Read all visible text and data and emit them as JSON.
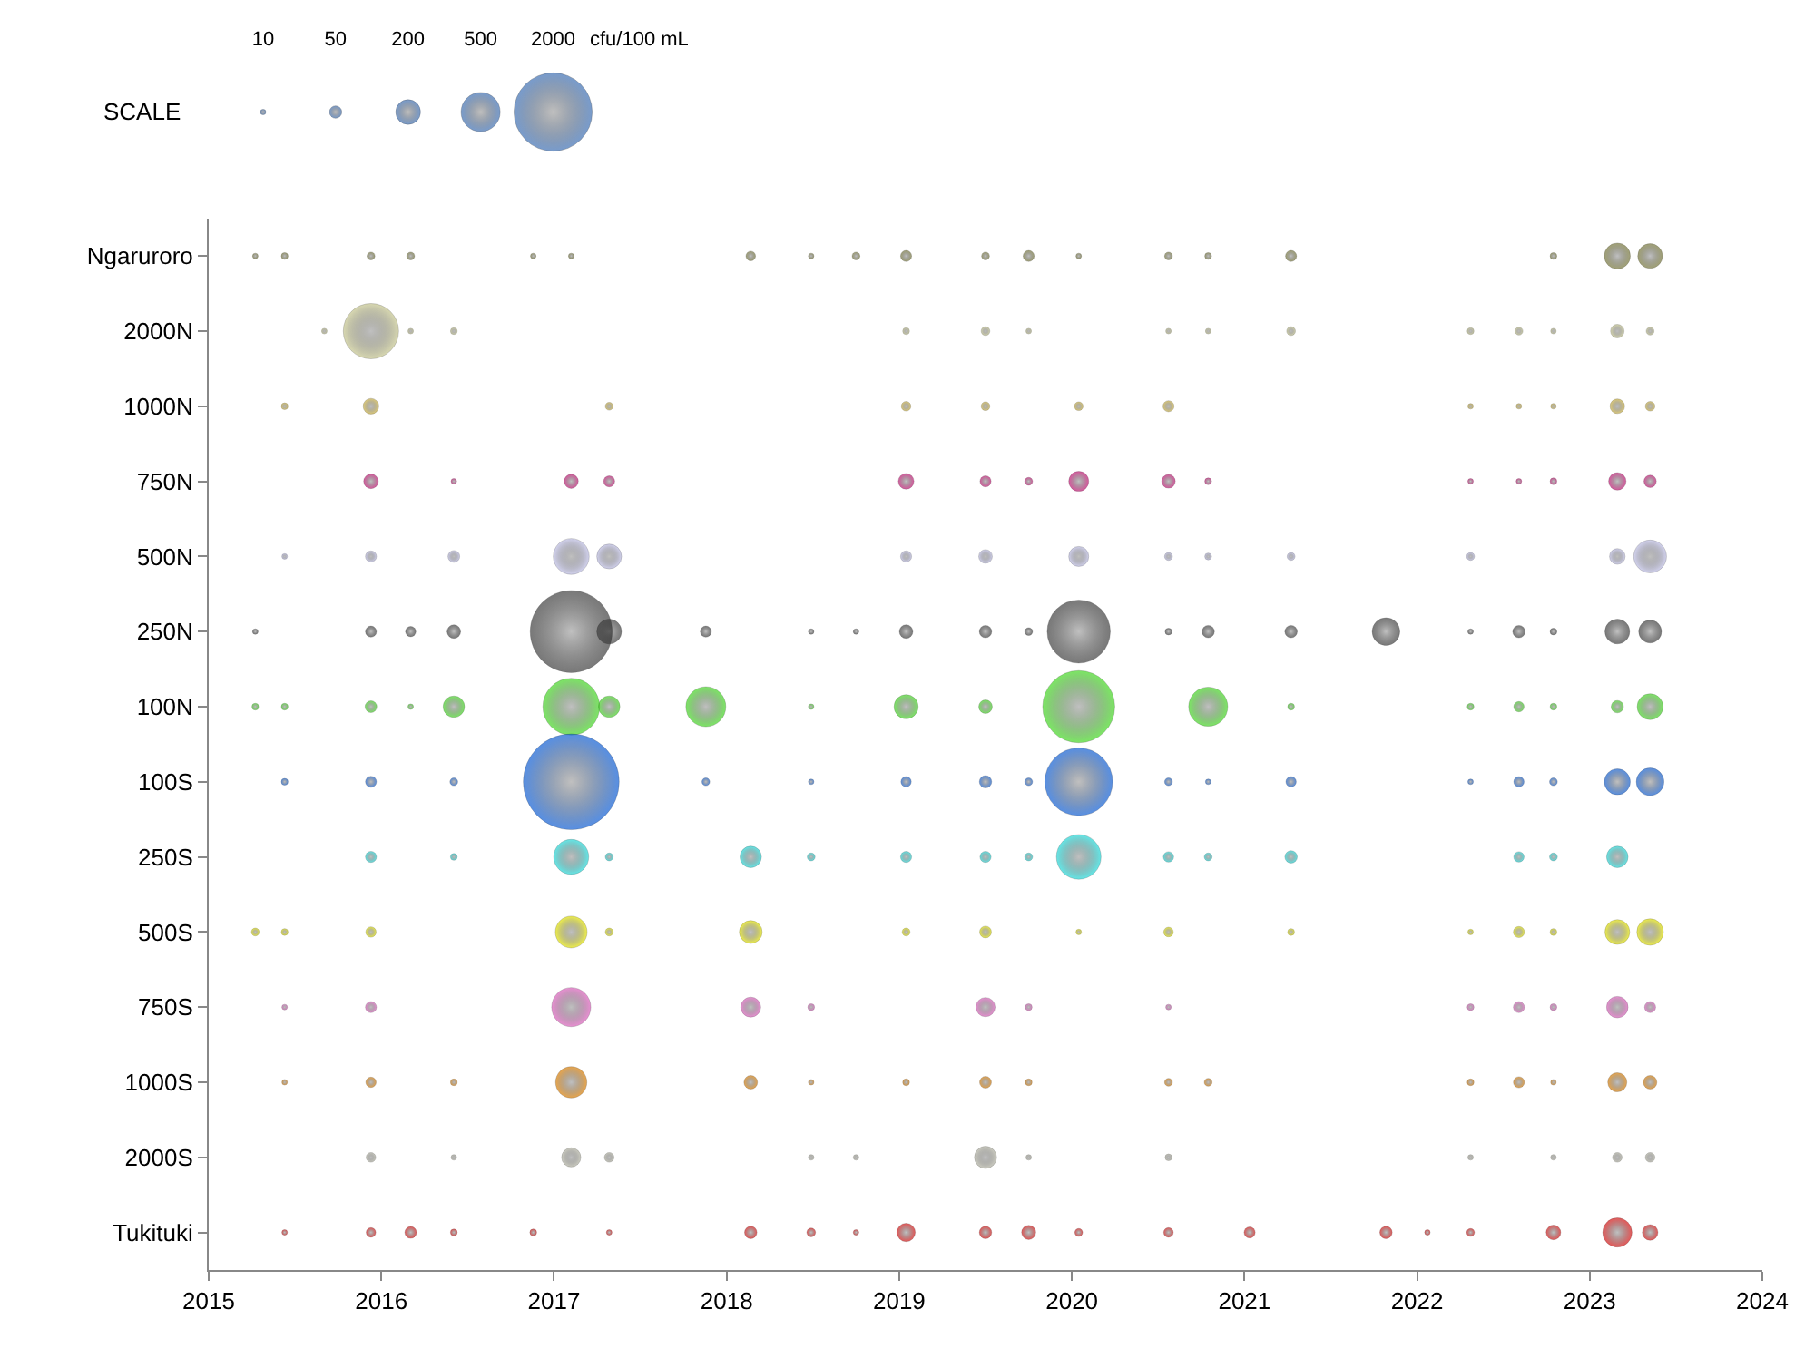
{
  "chart_data": {
    "type": "bubble",
    "orientation": "horizontal",
    "xlim": [
      2015,
      2024
    ],
    "xticks": [
      2015,
      2016,
      2017,
      2018,
      2019,
      2020,
      2021,
      2022,
      2023,
      2024
    ],
    "categories": [
      "Ngaruroro",
      "2000N",
      "1000N",
      "750N",
      "500N",
      "250N",
      "100N",
      "100S",
      "250S",
      "500S",
      "750S",
      "1000S",
      "2000S",
      "Tukituki"
    ],
    "colors": [
      "#7a7a3a",
      "#c8c890",
      "#d4b840",
      "#cc1177",
      "#c0c0e8",
      "#404040",
      "#44dd22",
      "#1060d8",
      "#22dddd",
      "#e8e800",
      "#e060c0",
      "#e08000",
      "#b8b8a8",
      "#e01010"
    ],
    "grid": false,
    "legend": false,
    "marker": "circle",
    "size_legend": [
      10,
      50,
      200,
      500,
      2000
    ],
    "annotations": [
      "SCALE",
      "cfu/100 mL"
    ],
    "series": [
      {
        "values": [
          2015.27,
          null,
          null,
          null,
          null,
          2015.27,
          2015.27,
          null,
          null,
          2015.27,
          null,
          null,
          null,
          null
        ],
        "sizes": [
          10,
          null,
          null,
          null,
          null,
          10,
          15,
          null,
          null,
          20,
          null,
          null,
          null,
          null
        ]
      },
      {
        "values": [
          2015.44,
          null,
          2015.44,
          null,
          2015.44,
          null,
          2015.44,
          2015.44,
          null,
          2015.44,
          2015.44,
          2015.44,
          null,
          2015.44
        ],
        "sizes": [
          15,
          null,
          15,
          null,
          10,
          null,
          15,
          15,
          null,
          15,
          10,
          10,
          null,
          10
        ]
      },
      {
        "values": [
          null,
          2015.67,
          null,
          null,
          null,
          null,
          null,
          null,
          null,
          null,
          null,
          null,
          null,
          null
        ],
        "sizes": [
          null,
          10,
          null,
          null,
          null,
          null,
          null,
          null,
          null,
          null,
          null,
          null,
          null,
          null
        ]
      },
      {
        "values": [
          2015.94,
          2015.94,
          2015.94,
          2015.94,
          2015.94,
          2015.94,
          2015.94,
          2015.94,
          2015.94,
          2015.94,
          2015.94,
          2015.94,
          2015.94,
          2015.94
        ],
        "sizes": [
          20,
          1000,
          80,
          70,
          40,
          40,
          45,
          40,
          40,
          35,
          40,
          35,
          30,
          30
        ]
      },
      {
        "values": [
          2016.17,
          2016.17,
          null,
          null,
          null,
          2016.17,
          2016.17,
          null,
          null,
          null,
          null,
          null,
          null,
          2016.17
        ],
        "sizes": [
          20,
          10,
          null,
          null,
          null,
          35,
          10,
          null,
          null,
          null,
          null,
          null,
          null,
          45
        ]
      },
      {
        "values": [
          null,
          2016.42,
          null,
          2016.42,
          2016.42,
          2016.42,
          2016.42,
          2016.42,
          2016.42,
          null,
          null,
          2016.42,
          2016.42,
          2016.42
        ],
        "sizes": [
          null,
          15,
          null,
          10,
          45,
          60,
          150,
          20,
          15,
          null,
          null,
          15,
          10,
          15
        ]
      },
      {
        "values": [
          2016.88,
          null,
          null,
          null,
          null,
          null,
          null,
          null,
          null,
          null,
          null,
          null,
          null,
          2016.88
        ],
        "sizes": [
          10,
          null,
          null,
          null,
          null,
          null,
          null,
          null,
          null,
          null,
          null,
          null,
          null,
          15
        ]
      },
      {
        "values": [
          2017.1,
          null,
          null,
          2017.1,
          2017.1,
          2017.1,
          2017.1,
          2017.1,
          2017.1,
          2017.1,
          2017.1,
          2017.1,
          2017.1,
          null
        ],
        "sizes": [
          10,
          null,
          null,
          65,
          420,
          2200,
          1050,
          3000,
          400,
          330,
          500,
          320,
          120,
          null
        ]
      },
      {
        "values": [
          null,
          null,
          2017.32,
          2017.32,
          2017.32,
          2017.32,
          2017.32,
          null,
          2017.32,
          2017.32,
          null,
          null,
          2017.32,
          2017.32
        ],
        "sizes": [
          null,
          null,
          20,
          40,
          200,
          200,
          150,
          null,
          20,
          20,
          null,
          null,
          30,
          10
        ]
      },
      {
        "values": [
          null,
          null,
          null,
          null,
          null,
          2017.88,
          2017.88,
          2017.88,
          null,
          null,
          null,
          null,
          null,
          null
        ],
        "sizes": [
          null,
          null,
          null,
          null,
          null,
          40,
          520,
          20,
          null,
          null,
          null,
          null,
          null,
          null
        ]
      },
      {
        "values": [
          2018.14,
          null,
          null,
          null,
          null,
          null,
          null,
          null,
          2018.14,
          2018.14,
          2018.14,
          2018.14,
          null,
          2018.14
        ],
        "sizes": [
          30,
          null,
          null,
          null,
          null,
          null,
          null,
          null,
          150,
          170,
          130,
          60,
          null,
          50
        ]
      },
      {
        "values": [
          2018.49,
          null,
          null,
          null,
          null,
          2018.49,
          2018.49,
          2018.49,
          2018.49,
          null,
          2018.49,
          2018.49,
          2018.49,
          2018.49
        ],
        "sizes": [
          10,
          null,
          null,
          null,
          null,
          10,
          10,
          10,
          20,
          null,
          15,
          10,
          10,
          25
        ]
      },
      {
        "values": [
          2018.75,
          null,
          null,
          null,
          null,
          2018.75,
          null,
          null,
          null,
          null,
          null,
          null,
          2018.75,
          2018.75
        ],
        "sizes": [
          20,
          null,
          null,
          null,
          null,
          10,
          null,
          null,
          null,
          null,
          null,
          null,
          10,
          10
        ]
      },
      {
        "values": [
          2019.04,
          2019.04,
          2019.04,
          2019.04,
          2019.04,
          2019.04,
          2019.04,
          2019.04,
          2019.04,
          2019.04,
          null,
          2019.04,
          null,
          2019.04
        ],
        "sizes": [
          40,
          15,
          30,
          80,
          40,
          60,
          190,
          35,
          40,
          20,
          null,
          15,
          null,
          110
        ]
      },
      {
        "values": [
          2019.5,
          2019.5,
          2019.5,
          2019.5,
          2019.5,
          2019.5,
          2019.5,
          2019.5,
          2019.5,
          2019.5,
          2019.5,
          2019.5,
          2019.5,
          2019.5
        ],
        "sizes": [
          20,
          25,
          25,
          40,
          60,
          50,
          60,
          50,
          40,
          45,
          120,
          45,
          160,
          50
        ]
      },
      {
        "values": [
          2019.75,
          2019.75,
          null,
          2019.75,
          null,
          2019.75,
          null,
          2019.75,
          2019.75,
          null,
          2019.75,
          2019.75,
          2019.75,
          2019.75
        ],
        "sizes": [
          40,
          10,
          null,
          20,
          null,
          20,
          null,
          20,
          20,
          null,
          15,
          15,
          10,
          65
        ]
      },
      {
        "values": [
          2020.04,
          null,
          2020.04,
          2020.04,
          2020.04,
          2020.04,
          2020.04,
          2020.04,
          2020.04,
          2020.04,
          null,
          null,
          null,
          2020.04
        ],
        "sizes": [
          10,
          null,
          25,
          130,
          130,
          1300,
          1700,
          1500,
          650,
          10,
          null,
          null,
          null,
          20
        ]
      },
      {
        "values": [
          2020.56,
          2020.56,
          2020.56,
          2020.56,
          2020.56,
          2020.56,
          null,
          2020.56,
          2020.56,
          2020.56,
          2020.56,
          2020.56,
          2020.56,
          2020.56
        ],
        "sizes": [
          20,
          10,
          40,
          60,
          20,
          15,
          null,
          20,
          35,
          30,
          10,
          20,
          15,
          30
        ]
      },
      {
        "values": [
          2020.79,
          2020.79,
          null,
          2020.79,
          2020.79,
          2020.79,
          2020.79,
          2020.79,
          2020.79,
          null,
          null,
          2020.79,
          null,
          null
        ],
        "sizes": [
          15,
          10,
          null,
          15,
          15,
          50,
          500,
          10,
          20,
          null,
          null,
          20,
          null,
          null
        ]
      },
      {
        "values": [
          null,
          null,
          null,
          null,
          null,
          null,
          null,
          null,
          null,
          null,
          null,
          null,
          null,
          2021.03
        ],
        "sizes": [
          null,
          null,
          null,
          null,
          null,
          null,
          null,
          null,
          null,
          null,
          null,
          null,
          null,
          40
        ]
      },
      {
        "values": [
          2021.27,
          2021.27,
          null,
          null,
          2021.27,
          2021.27,
          2021.27,
          2021.27,
          2021.27,
          2021.27,
          null,
          null,
          null,
          null
        ],
        "sizes": [
          40,
          25,
          null,
          null,
          20,
          50,
          15,
          35,
          50,
          15,
          null,
          null,
          null,
          null
        ]
      },
      {
        "values": [
          null,
          null,
          null,
          null,
          null,
          2021.82,
          null,
          null,
          null,
          null,
          null,
          null,
          null,
          2021.82
        ],
        "sizes": [
          null,
          null,
          null,
          null,
          null,
          250,
          null,
          null,
          null,
          null,
          null,
          null,
          null,
          50
        ]
      },
      {
        "values": [
          null,
          null,
          null,
          null,
          null,
          null,
          null,
          null,
          null,
          null,
          null,
          null,
          null,
          2022.06
        ],
        "sizes": [
          null,
          null,
          null,
          null,
          null,
          null,
          null,
          null,
          null,
          null,
          null,
          null,
          null,
          10
        ]
      },
      {
        "values": [
          null,
          2022.31,
          2022.31,
          2022.31,
          2022.31,
          2022.31,
          2022.31,
          2022.31,
          null,
          2022.31,
          2022.31,
          2022.31,
          2022.31,
          2022.31
        ],
        "sizes": [
          null,
          15,
          10,
          10,
          20,
          10,
          15,
          10,
          null,
          10,
          15,
          15,
          10,
          20
        ]
      },
      {
        "values": [
          null,
          2022.59,
          2022.59,
          2022.59,
          null,
          2022.59,
          2022.59,
          2022.59,
          2022.59,
          2022.59,
          2022.59,
          2022.59,
          null,
          null
        ],
        "sizes": [
          null,
          20,
          10,
          10,
          null,
          50,
          35,
          35,
          35,
          40,
          40,
          40,
          null,
          null
        ]
      },
      {
        "values": [
          2022.79,
          2022.79,
          2022.79,
          2022.79,
          null,
          2022.79,
          2022.79,
          2022.79,
          2022.79,
          2022.79,
          2022.79,
          2022.79,
          2022.79,
          2022.79
        ],
        "sizes": [
          15,
          10,
          10,
          15,
          null,
          15,
          15,
          20,
          20,
          15,
          15,
          10,
          10,
          70
        ]
      },
      {
        "values": [
          2023.16,
          2023.16,
          2023.16,
          2023.16,
          2023.16,
          2023.16,
          2023.16,
          2023.16,
          2023.16,
          2023.16,
          2023.16,
          2023.16,
          2023.16,
          2023.16
        ],
        "sizes": [
          220,
          60,
          70,
          100,
          80,
          200,
          50,
          220,
          150,
          200,
          150,
          120,
          30,
          280
        ]
      },
      {
        "values": [
          2023.35,
          2023.35,
          2023.35,
          2023.35,
          2023.35,
          2023.35,
          2023.35,
          2023.35,
          null,
          2023.35,
          2023.35,
          2023.35,
          2023.35,
          2023.35
        ],
        "sizes": [
          200,
          20,
          30,
          50,
          350,
          170,
          220,
          250,
          null,
          230,
          40,
          60,
          30,
          80
        ]
      }
    ]
  }
}
